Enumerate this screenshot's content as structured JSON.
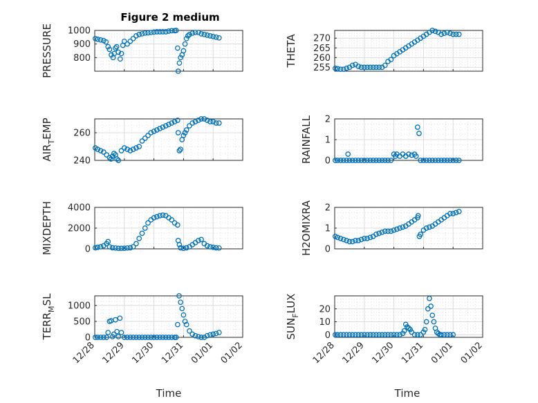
{
  "figure": {
    "title": "Figure 2 medium"
  },
  "chart_data": [
    {
      "type": "scatter",
      "id": "p1",
      "title": "Figure 2 medium",
      "ylabel": "PRESSURE",
      "xlabel": "",
      "ylim": [
        700,
        1000
      ],
      "yticks": [
        800,
        900,
        1000
      ],
      "ytick_labels": [
        "800",
        "900",
        "1000"
      ],
      "xlim": [
        0,
        5
      ],
      "xticks": [
        0,
        1,
        2,
        3,
        4,
        5
      ],
      "xtick_labels": [],
      "grid": true,
      "marker": "o",
      "color": "#0072BD",
      "x": [
        0.02,
        0.1,
        0.2,
        0.3,
        0.38,
        0.45,
        0.5,
        0.56,
        0.62,
        0.66,
        0.7,
        0.74,
        0.8,
        0.86,
        0.9,
        0.95,
        1.0,
        1.1,
        1.2,
        1.3,
        1.4,
        1.5,
        1.6,
        1.7,
        1.8,
        1.9,
        2.0,
        2.1,
        2.2,
        2.3,
        2.4,
        2.5,
        2.6,
        2.7,
        2.75,
        2.8,
        2.82,
        2.86,
        2.9,
        2.95,
        3.0,
        3.05,
        3.1,
        3.15,
        3.2,
        3.3,
        3.4,
        3.5,
        3.6,
        3.7,
        3.8,
        3.9,
        4.0,
        4.1,
        4.2
      ],
      "y": [
        940,
        935,
        930,
        925,
        915,
        880,
        860,
        820,
        800,
        830,
        870,
        880,
        840,
        790,
        830,
        890,
        920,
        900,
        920,
        940,
        960,
        970,
        975,
        980,
        982,
        985,
        988,
        990,
        990,
        990,
        990,
        995,
        998,
        998,
        1000,
        870,
        700,
        760,
        800,
        820,
        850,
        900,
        940,
        960,
        970,
        980,
        985,
        985,
        975,
        970,
        965,
        960,
        955,
        950,
        945
      ]
    },
    {
      "type": "scatter",
      "id": "p2",
      "ylabel": "THETA",
      "xlabel": "",
      "ylim": [
        253,
        274
      ],
      "yticks": [
        255,
        260,
        265,
        270
      ],
      "ytick_labels": [
        "255",
        "260",
        "265",
        "270"
      ],
      "xlim": [
        0,
        5
      ],
      "xticks": [
        0,
        1,
        2,
        3,
        4,
        5
      ],
      "xtick_labels": [],
      "grid": true,
      "marker": "o",
      "color": "#0072BD",
      "x": [
        0.02,
        0.1,
        0.2,
        0.3,
        0.4,
        0.5,
        0.6,
        0.7,
        0.8,
        0.9,
        1.0,
        1.1,
        1.2,
        1.3,
        1.4,
        1.5,
        1.6,
        1.7,
        1.8,
        1.9,
        2.0,
        2.1,
        2.2,
        2.3,
        2.4,
        2.5,
        2.6,
        2.7,
        2.8,
        2.9,
        3.0,
        3.1,
        3.2,
        3.3,
        3.4,
        3.5,
        3.6,
        3.7,
        3.8,
        3.9,
        4.0,
        4.1,
        4.2
      ],
      "y": [
        254.5,
        254.3,
        254,
        254,
        254.5,
        255,
        256,
        256.5,
        255.5,
        255,
        255,
        255,
        255,
        255,
        255,
        255,
        255,
        256,
        258,
        259,
        261,
        262,
        263,
        264,
        265,
        266,
        267,
        268,
        269,
        270,
        271,
        272,
        273,
        274,
        273.5,
        273,
        272,
        272.5,
        273,
        272.5,
        272,
        272,
        272
      ]
    },
    {
      "type": "scatter",
      "id": "p3",
      "ylabel": "AIR_TEMP",
      "xlabel": "",
      "ylim": [
        240,
        270
      ],
      "yticks": [
        240,
        260
      ],
      "ytick_labels": [
        "240",
        "260"
      ],
      "xlim": [
        0,
        5
      ],
      "xticks": [
        0,
        1,
        2,
        3,
        4,
        5
      ],
      "xtick_labels": [],
      "grid": true,
      "marker": "o",
      "color": "#0072BD",
      "x": [
        0.02,
        0.1,
        0.2,
        0.3,
        0.4,
        0.5,
        0.55,
        0.6,
        0.65,
        0.7,
        0.75,
        0.8,
        0.9,
        1.0,
        1.1,
        1.2,
        1.3,
        1.4,
        1.5,
        1.6,
        1.7,
        1.8,
        1.9,
        2.0,
        2.1,
        2.2,
        2.3,
        2.4,
        2.5,
        2.6,
        2.7,
        2.8,
        2.82,
        2.86,
        2.9,
        2.95,
        3.0,
        3.05,
        3.1,
        3.2,
        3.3,
        3.4,
        3.5,
        3.6,
        3.7,
        3.8,
        3.9,
        4.0,
        4.1,
        4.2
      ],
      "y": [
        249,
        248,
        247,
        246,
        244,
        242,
        241,
        243,
        245,
        244,
        241,
        240,
        247,
        249,
        248,
        247,
        248,
        249,
        250,
        254,
        256,
        258,
        260,
        261,
        262,
        263,
        264,
        265,
        266,
        267,
        268,
        269,
        260,
        247,
        248,
        255,
        258,
        260,
        262,
        265,
        267,
        268,
        269,
        270,
        270,
        269,
        268,
        268,
        267,
        267
      ]
    },
    {
      "type": "scatter",
      "id": "p4",
      "ylabel": "RAINFALL",
      "xlabel": "",
      "ylim": [
        0,
        2
      ],
      "yticks": [
        0,
        1,
        2
      ],
      "ytick_labels": [
        "0",
        "1",
        "2"
      ],
      "xlim": [
        0,
        5
      ],
      "xticks": [
        0,
        1,
        2,
        3,
        4,
        5
      ],
      "xtick_labels": [],
      "grid": true,
      "marker": "o",
      "color": "#0072BD",
      "x": [
        0.02,
        0.1,
        0.2,
        0.3,
        0.4,
        0.45,
        0.5,
        0.6,
        0.7,
        0.8,
        0.9,
        1.0,
        1.1,
        1.2,
        1.3,
        1.4,
        1.5,
        1.6,
        1.7,
        1.8,
        1.9,
        2.0,
        2.05,
        2.1,
        2.2,
        2.3,
        2.4,
        2.5,
        2.6,
        2.7,
        2.75,
        2.8,
        2.85,
        2.9,
        3.0,
        3.1,
        3.2,
        3.3,
        3.4,
        3.5,
        3.6,
        3.7,
        3.8,
        3.9,
        4.0,
        4.1,
        4.2
      ],
      "y": [
        0,
        0,
        0,
        0,
        0,
        0.3,
        0,
        0,
        0,
        0,
        0,
        0,
        0,
        0,
        0,
        0,
        0,
        0,
        0,
        0,
        0,
        0.3,
        0.2,
        0.3,
        0.2,
        0.3,
        0.2,
        0.3,
        0.25,
        0.3,
        0.2,
        1.6,
        1.3,
        0,
        0,
        0,
        0,
        0,
        0,
        0,
        0,
        0,
        0,
        0,
        0,
        0,
        0
      ]
    },
    {
      "type": "scatter",
      "id": "p5",
      "ylabel": "MIXDEPTH",
      "xlabel": "",
      "ylim": [
        0,
        4000
      ],
      "yticks": [
        0,
        2000,
        4000
      ],
      "ytick_labels": [
        "0",
        "2000",
        "4000"
      ],
      "xlim": [
        0,
        5
      ],
      "xticks": [
        0,
        1,
        2,
        3,
        4,
        5
      ],
      "xtick_labels": [],
      "grid": true,
      "marker": "o",
      "color": "#0072BD",
      "x": [
        0.02,
        0.1,
        0.2,
        0.3,
        0.4,
        0.45,
        0.5,
        0.6,
        0.7,
        0.8,
        0.9,
        1.0,
        1.1,
        1.2,
        1.3,
        1.4,
        1.5,
        1.6,
        1.7,
        1.8,
        1.9,
        2.0,
        2.1,
        2.2,
        2.3,
        2.4,
        2.5,
        2.6,
        2.7,
        2.8,
        2.82,
        2.86,
        2.9,
        3.0,
        3.1,
        3.2,
        3.3,
        3.4,
        3.5,
        3.6,
        3.7,
        3.8,
        3.9,
        4.0,
        4.1,
        4.2
      ],
      "y": [
        100,
        150,
        200,
        300,
        500,
        700,
        200,
        100,
        80,
        50,
        50,
        60,
        80,
        100,
        200,
        500,
        1000,
        1500,
        2000,
        2500,
        2800,
        3000,
        3100,
        3200,
        3250,
        3200,
        3000,
        2800,
        2500,
        2300,
        800,
        400,
        100,
        50,
        100,
        200,
        400,
        600,
        800,
        900,
        500,
        300,
        200,
        150,
        100,
        80
      ]
    },
    {
      "type": "scatter",
      "id": "p6",
      "ylabel": "H2OMIXRA",
      "xlabel": "",
      "ylim": [
        0,
        2
      ],
      "yticks": [
        0,
        1,
        2
      ],
      "ytick_labels": [
        "0",
        "1",
        "2"
      ],
      "xlim": [
        0,
        5
      ],
      "xticks": [
        0,
        1,
        2,
        3,
        4,
        5
      ],
      "xtick_labels": [],
      "grid": true,
      "marker": "o",
      "color": "#0072BD",
      "x": [
        0.02,
        0.1,
        0.2,
        0.3,
        0.4,
        0.5,
        0.6,
        0.7,
        0.8,
        0.9,
        1.0,
        1.1,
        1.2,
        1.3,
        1.4,
        1.5,
        1.6,
        1.7,
        1.8,
        1.9,
        2.0,
        2.1,
        2.2,
        2.3,
        2.4,
        2.5,
        2.6,
        2.7,
        2.8,
        2.82,
        2.86,
        2.9,
        3.0,
        3.1,
        3.2,
        3.3,
        3.4,
        3.5,
        3.6,
        3.7,
        3.8,
        3.9,
        4.0,
        4.1,
        4.2
      ],
      "y": [
        0.6,
        0.55,
        0.5,
        0.45,
        0.4,
        0.35,
        0.35,
        0.4,
        0.4,
        0.45,
        0.5,
        0.5,
        0.55,
        0.6,
        0.7,
        0.75,
        0.8,
        0.85,
        0.85,
        0.85,
        0.9,
        0.95,
        1.0,
        1.05,
        1.1,
        1.2,
        1.3,
        1.4,
        1.5,
        1.6,
        0.6,
        0.7,
        0.9,
        1.0,
        1.05,
        1.1,
        1.2,
        1.3,
        1.4,
        1.5,
        1.6,
        1.7,
        1.7,
        1.75,
        1.8
      ]
    },
    {
      "type": "scatter",
      "id": "p7",
      "ylabel": "TERR_MSL",
      "xlabel": "Time",
      "ylim": [
        0,
        1300
      ],
      "yticks": [
        0,
        500,
        1000
      ],
      "ytick_labels": [
        "0",
        "500",
        "1000"
      ],
      "xlim": [
        0,
        5
      ],
      "xticks": [
        0,
        1,
        2,
        3,
        4,
        5
      ],
      "xtick_labels": [
        "12/28",
        "12/29",
        "12/30",
        "12/31",
        "01/01",
        "01/02"
      ],
      "grid": true,
      "marker": "o",
      "color": "#0072BD",
      "x": [
        0.02,
        0.1,
        0.2,
        0.3,
        0.4,
        0.45,
        0.5,
        0.55,
        0.6,
        0.65,
        0.7,
        0.75,
        0.8,
        0.85,
        0.9,
        1.0,
        1.1,
        1.2,
        1.3,
        1.4,
        1.5,
        1.6,
        1.7,
        1.8,
        1.9,
        2.0,
        2.1,
        2.2,
        2.3,
        2.4,
        2.5,
        2.6,
        2.7,
        2.75,
        2.8,
        2.85,
        2.9,
        2.95,
        3.0,
        3.05,
        3.1,
        3.2,
        3.3,
        3.4,
        3.5,
        3.6,
        3.7,
        3.8,
        3.9,
        4.0,
        4.1,
        4.2
      ],
      "y": [
        0,
        0,
        0,
        0,
        0,
        150,
        500,
        520,
        20,
        100,
        550,
        180,
        20,
        600,
        150,
        0,
        0,
        0,
        0,
        0,
        0,
        0,
        0,
        0,
        0,
        0,
        0,
        0,
        0,
        0,
        0,
        0,
        0,
        0,
        400,
        1300,
        1100,
        900,
        700,
        500,
        400,
        200,
        100,
        50,
        20,
        0,
        0,
        50,
        80,
        100,
        120,
        150
      ]
    },
    {
      "type": "scatter",
      "id": "p8",
      "ylabel": "SUN_FLUX",
      "xlabel": "Time",
      "ylim": [
        -2,
        30
      ],
      "yticks": [
        0,
        10,
        20
      ],
      "ytick_labels": [
        "0",
        "10",
        "20"
      ],
      "xlim": [
        0,
        5
      ],
      "xticks": [
        0,
        1,
        2,
        3,
        4,
        5
      ],
      "xtick_labels": [
        "12/28",
        "12/29",
        "12/30",
        "12/31",
        "01/01",
        "01/02"
      ],
      "grid": true,
      "marker": "o",
      "color": "#0072BD",
      "x": [
        0.02,
        0.1,
        0.2,
        0.3,
        0.4,
        0.5,
        0.6,
        0.7,
        0.8,
        0.9,
        1.0,
        1.1,
        1.2,
        1.3,
        1.4,
        1.5,
        1.6,
        1.7,
        1.8,
        1.9,
        2.0,
        2.1,
        2.2,
        2.3,
        2.35,
        2.4,
        2.45,
        2.5,
        2.55,
        2.6,
        2.7,
        2.8,
        2.9,
        3.0,
        3.05,
        3.1,
        3.15,
        3.2,
        3.25,
        3.3,
        3.35,
        3.4,
        3.45,
        3.5,
        3.55,
        3.6,
        3.7,
        3.8,
        3.9,
        4.0
      ],
      "y": [
        0,
        0,
        0,
        0,
        0,
        0,
        0,
        0,
        0,
        0,
        0,
        0,
        0,
        0,
        0,
        0,
        0,
        0,
        0,
        0,
        0,
        0,
        0,
        1,
        3,
        8,
        6,
        5,
        4,
        2,
        0,
        0,
        0,
        2,
        4,
        10,
        20,
        28,
        22,
        15,
        10,
        5,
        2,
        1,
        0,
        0,
        0,
        0,
        0,
        0
      ]
    }
  ]
}
